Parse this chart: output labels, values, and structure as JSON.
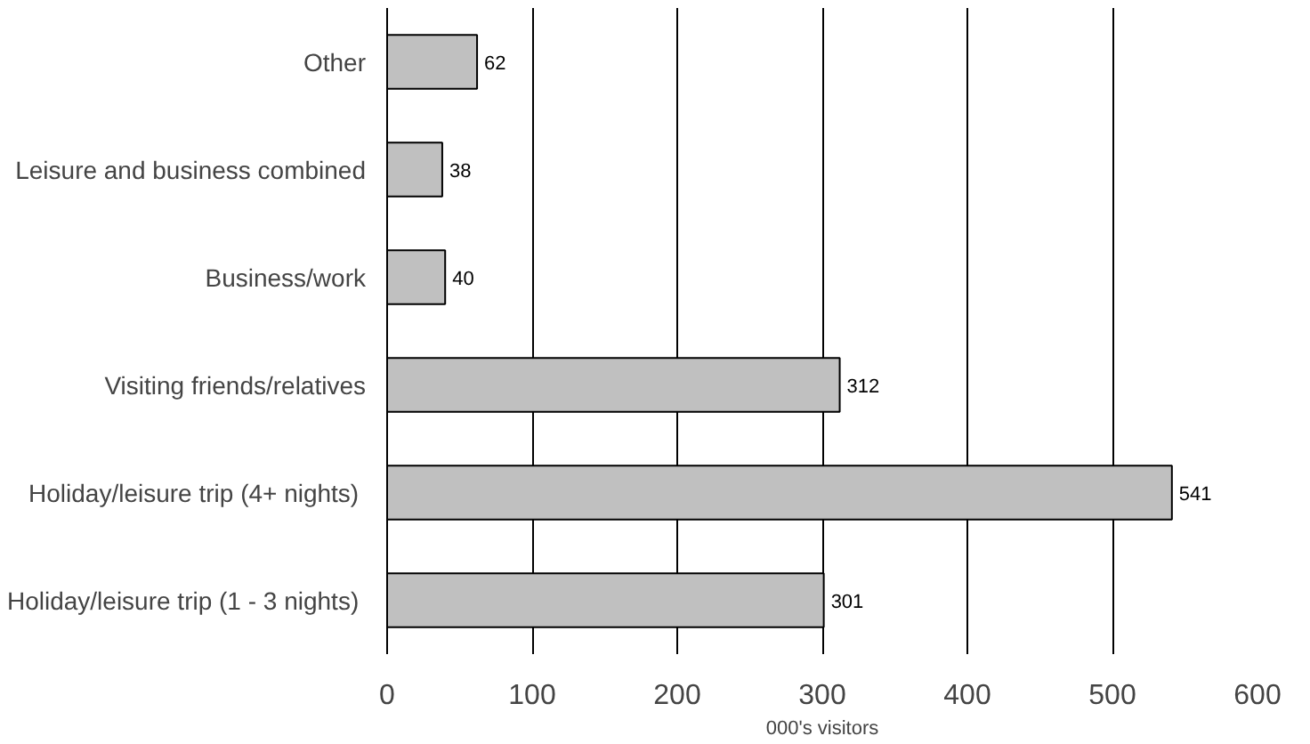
{
  "chart_data": {
    "type": "bar",
    "orientation": "horizontal",
    "xlabel": "000's visitors",
    "categories": [
      "Other",
      "Leisure and business combined",
      "Business/work",
      "Visiting friends/relatives",
      "Holiday/leisure trip  (4+ nights)",
      "Holiday/leisure trip  (1 - 3 nights)"
    ],
    "values": [
      62,
      38,
      40,
      312,
      541,
      301
    ],
    "color": "#c0c0c0",
    "xlim": [
      0,
      600
    ],
    "xticks": [
      0,
      100,
      200,
      300,
      400,
      500,
      600
    ],
    "grid": "x",
    "data_labels": true
  }
}
